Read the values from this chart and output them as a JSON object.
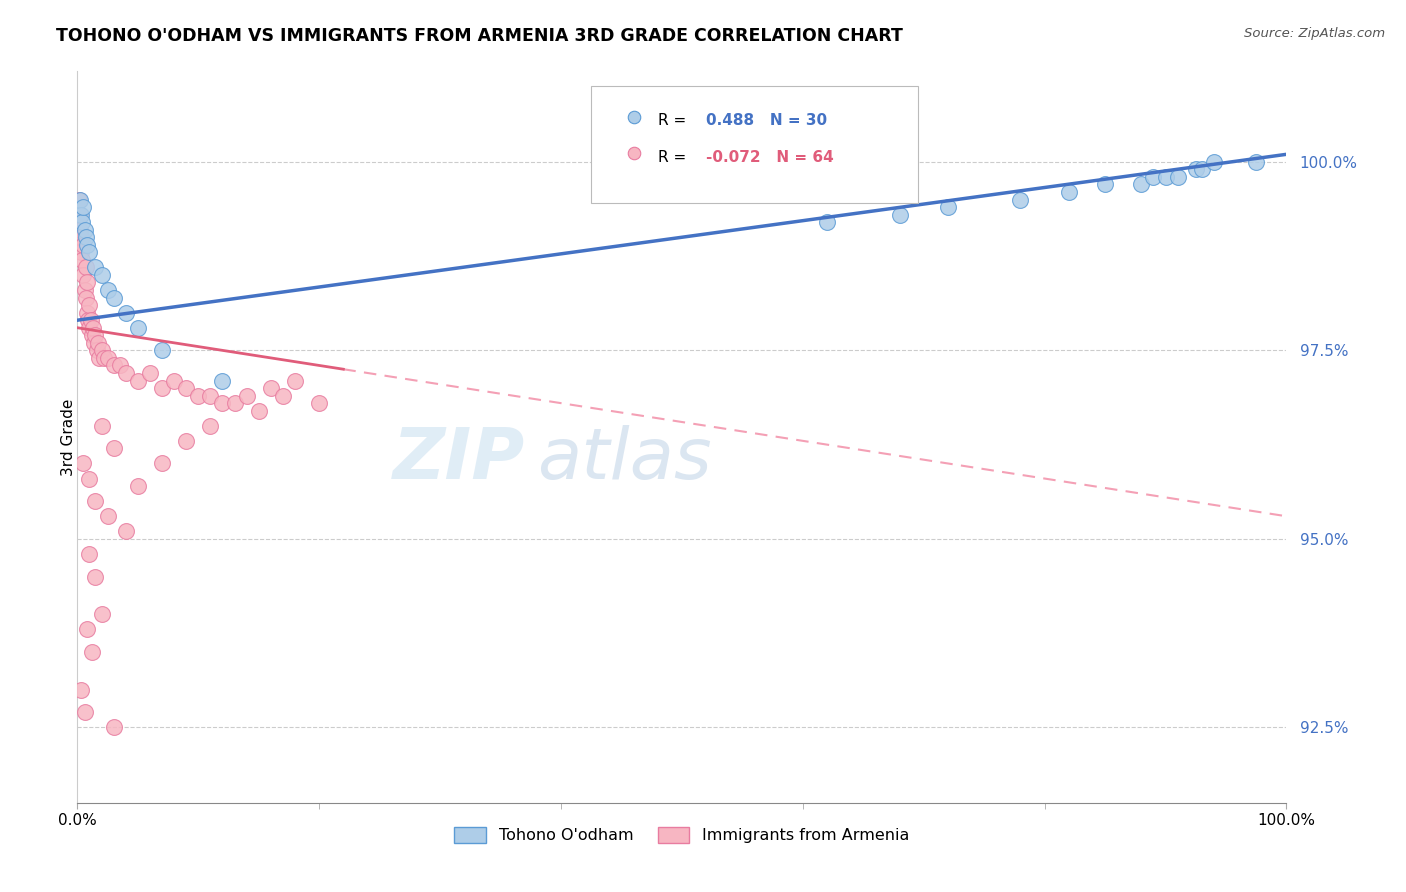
{
  "title": "TOHONO O'ODHAM VS IMMIGRANTS FROM ARMENIA 3RD GRADE CORRELATION CHART",
  "source": "Source: ZipAtlas.com",
  "ylabel": "3rd Grade",
  "ytick_values": [
    92.5,
    95.0,
    97.5,
    100.0
  ],
  "xlim": [
    0.0,
    100.0
  ],
  "ylim": [
    91.5,
    101.2
  ],
  "legend_blue_r": "0.488",
  "legend_blue_n": "30",
  "legend_pink_r": "-0.072",
  "legend_pink_n": "64",
  "legend_label_blue": "Tohono O'odham",
  "legend_label_pink": "Immigrants from Armenia",
  "blue_color": "#aecde8",
  "pink_color": "#f7b6c2",
  "blue_edge_color": "#5b9bd5",
  "pink_edge_color": "#e87ca0",
  "trend_blue_color": "#4472c4",
  "trend_pink_color": "#e05c7a",
  "trend_pink_dashed_color": "#f4a0b5",
  "watermark_zip": "ZIP",
  "watermark_atlas": "atlas",
  "blue_scatter_x": [
    0.2,
    0.3,
    0.4,
    0.5,
    0.6,
    0.7,
    0.8,
    1.0,
    1.5,
    2.0,
    2.5,
    3.0,
    4.0,
    5.0,
    7.0,
    12.0,
    62.0,
    68.0,
    72.0,
    78.0,
    82.0,
    85.0,
    88.0,
    89.0,
    90.0,
    91.0,
    92.5,
    93.0,
    94.0,
    97.5
  ],
  "blue_scatter_y": [
    99.5,
    99.3,
    99.2,
    99.4,
    99.1,
    99.0,
    98.9,
    98.8,
    98.6,
    98.5,
    98.3,
    98.2,
    98.0,
    97.8,
    97.5,
    97.1,
    99.2,
    99.3,
    99.4,
    99.5,
    99.6,
    99.7,
    99.7,
    99.8,
    99.8,
    99.8,
    99.9,
    99.9,
    100.0,
    100.0
  ],
  "pink_scatter_x": [
    0.1,
    0.2,
    0.2,
    0.3,
    0.3,
    0.4,
    0.5,
    0.5,
    0.6,
    0.7,
    0.7,
    0.8,
    0.8,
    0.9,
    1.0,
    1.0,
    1.1,
    1.2,
    1.3,
    1.4,
    1.5,
    1.6,
    1.7,
    1.8,
    2.0,
    2.2,
    2.5,
    3.0,
    3.5,
    4.0,
    5.0,
    6.0,
    7.0,
    8.0,
    9.0,
    10.0,
    11.0,
    12.0,
    13.0,
    14.0,
    15.0,
    16.0,
    17.0,
    18.0,
    2.0,
    3.0,
    0.5,
    1.0,
    1.5,
    2.5,
    4.0,
    1.0,
    1.5,
    2.0,
    0.8,
    1.2,
    0.3,
    0.6,
    3.0,
    5.0,
    7.0,
    9.0,
    11.0,
    20.0
  ],
  "pink_scatter_y": [
    99.5,
    99.3,
    99.1,
    99.0,
    98.8,
    98.7,
    98.9,
    98.5,
    98.3,
    98.6,
    98.2,
    98.4,
    98.0,
    97.9,
    98.1,
    97.8,
    97.9,
    97.7,
    97.8,
    97.6,
    97.7,
    97.5,
    97.6,
    97.4,
    97.5,
    97.4,
    97.4,
    97.3,
    97.3,
    97.2,
    97.1,
    97.2,
    97.0,
    97.1,
    97.0,
    96.9,
    96.9,
    96.8,
    96.8,
    96.9,
    96.7,
    97.0,
    96.9,
    97.1,
    96.5,
    96.2,
    96.0,
    95.8,
    95.5,
    95.3,
    95.1,
    94.8,
    94.5,
    94.0,
    93.8,
    93.5,
    93.0,
    92.7,
    92.5,
    95.7,
    96.0,
    96.3,
    96.5,
    96.8
  ]
}
